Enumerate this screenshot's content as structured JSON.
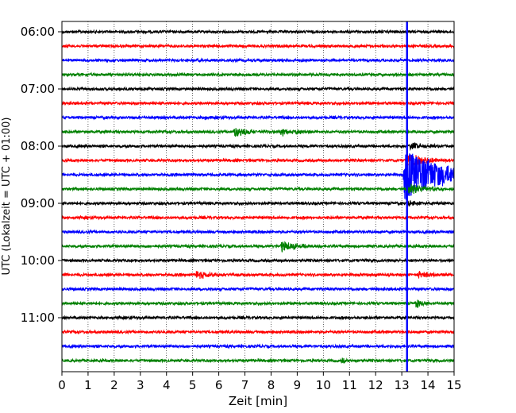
{
  "chart_data": {
    "type": "line",
    "chart_kind": "helicorder-seismogram",
    "title": "",
    "xlabel": "Zeit  [min]",
    "ylabel": "UTC (Lokalzeit = UTC + 01:00)",
    "xlim": [
      0,
      15
    ],
    "x_ticks": [
      "0",
      "1",
      "2",
      "3",
      "4",
      "5",
      "6",
      "7",
      "8",
      "9",
      "10",
      "11",
      "12",
      "13",
      "14",
      "15"
    ],
    "y_tick_labels": [
      "06:00",
      "07:00",
      "08:00",
      "09:00",
      "10:00",
      "11:00"
    ],
    "traces_per_hour": 4,
    "minutes_per_trace": 15,
    "trace_start_times": [
      "06:00",
      "06:15",
      "06:30",
      "06:45",
      "07:00",
      "07:15",
      "07:30",
      "07:45",
      "08:00",
      "08:15",
      "08:30",
      "08:45",
      "09:00",
      "09:15",
      "09:30",
      "09:45",
      "10:00",
      "10:15",
      "10:30",
      "10:45",
      "11:00",
      "11:15",
      "11:30",
      "11:45"
    ],
    "trace_color_cycle": [
      "#000000",
      "#ff0000",
      "#0000ff",
      "#008000"
    ],
    "grid": "vertical dotted lines at each minute",
    "noise_amplitude": 1.6,
    "events": [
      {
        "trace": 7,
        "t": 6.6,
        "amp": 7,
        "dur": 0.5
      },
      {
        "trace": 7,
        "t": 8.4,
        "amp": 5,
        "dur": 0.3
      },
      {
        "trace": 7,
        "t": 8.95,
        "amp": 4,
        "dur": 0.25
      },
      {
        "trace": 6,
        "t": 5.5,
        "amp": 6,
        "dur": 0.08
      },
      {
        "trace": 15,
        "t": 8.4,
        "amp": 8,
        "dur": 0.5
      },
      {
        "trace": 17,
        "t": 5.15,
        "amp": 5,
        "dur": 0.6
      },
      {
        "trace": 17,
        "t": 13.65,
        "amp": 5,
        "dur": 0.5
      },
      {
        "trace": 19,
        "t": 13.55,
        "amp": 6,
        "dur": 0.25
      },
      {
        "trace": 10,
        "t": 13.1,
        "amp": 34,
        "dur": 1.6
      },
      {
        "trace": 9,
        "t": 13.2,
        "amp": 9,
        "dur": 0.8
      },
      {
        "trace": 11,
        "t": 13.2,
        "amp": 7,
        "dur": 0.8
      },
      {
        "trace": 8,
        "t": 13.3,
        "amp": 5,
        "dur": 0.5
      },
      {
        "trace": 12,
        "t": 13.2,
        "amp": 4,
        "dur": 0.5
      },
      {
        "trace": 23,
        "t": 10.7,
        "amp": 3,
        "dur": 0.2
      }
    ],
    "spike": {
      "x": 13.2,
      "color": "#0000ff",
      "note": "blue vertical saturation line spanning all traces"
    }
  }
}
